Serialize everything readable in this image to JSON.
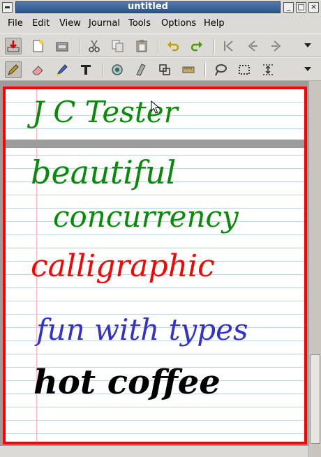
{
  "window": {
    "title": "untitled"
  },
  "menu": {
    "items": [
      "File",
      "Edit",
      "View",
      "Journal",
      "Tools",
      "Options",
      "Help"
    ]
  },
  "toolbar1": {
    "buttons": [
      "save-icon",
      "new-icon",
      "open-icon",
      "cut-icon",
      "copy-icon",
      "paste-icon",
      "undo-icon",
      "redo-icon",
      "first-page-icon",
      "previous-page-icon",
      "next-page-icon"
    ]
  },
  "toolbar2": {
    "buttons": [
      "pen-icon",
      "eraser-icon",
      "highlighter-icon",
      "text-tool-icon",
      "shape-recognizer-icon",
      "ruler-icon",
      "select-region-icon",
      "select-rectangle-icon",
      "vertical-space-icon",
      "hand-tool-icon",
      "default-pen-icon",
      "thickness-icon"
    ]
  },
  "ink_text": [
    {
      "text": "J C Tester",
      "color": "#0a8a0a"
    },
    {
      "text": "beautiful",
      "color": "#0a8a0a"
    },
    {
      "text": "concurrency",
      "color": "#0a8a0a"
    },
    {
      "text": "calligraphic",
      "color": "#ff0000"
    },
    {
      "text": "fun with types",
      "color": "#3333cc"
    },
    {
      "text": "hot coffee",
      "color": "#000000"
    }
  ],
  "colors": {
    "page_border": "#ff0000",
    "rule_lines": "#bcd7ef",
    "margin_line": "#ffb6c1",
    "title_bar": "#3b62a0"
  }
}
